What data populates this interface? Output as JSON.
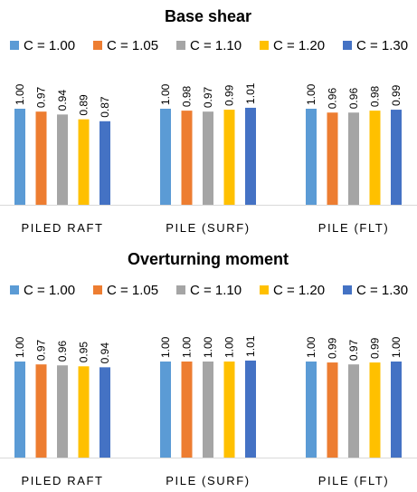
{
  "chart_data": [
    {
      "type": "bar",
      "title": "Base shear",
      "categories": [
        "PILED RAFT",
        "PILE (SURF)",
        "PILE (FLT)"
      ],
      "series": [
        {
          "name": "C = 1.00",
          "color": "#5B9BD5",
          "values": [
            1.0,
            1.0,
            1.0
          ]
        },
        {
          "name": "C = 1.05",
          "color": "#ED7D31",
          "values": [
            0.97,
            0.98,
            0.96
          ]
        },
        {
          "name": "C = 1.10",
          "color": "#A5A5A5",
          "values": [
            0.94,
            0.97,
            0.96
          ]
        },
        {
          "name": "C = 1.20",
          "color": "#FFC000",
          "values": [
            0.89,
            0.99,
            0.98
          ]
        },
        {
          "name": "C = 1.30",
          "color": "#4472C4",
          "values": [
            0.87,
            1.01,
            0.99
          ]
        }
      ],
      "value_labels": [
        [
          "1.00",
          "0.97",
          "0.94",
          "0.89",
          "0.87"
        ],
        [
          "1.00",
          "0.98",
          "0.97",
          "0.99",
          "1.01"
        ],
        [
          "1.00",
          "0.96",
          "0.96",
          "0.98",
          "0.99"
        ]
      ],
      "legend_position": "top",
      "grid": false
    },
    {
      "type": "bar",
      "title": "Overturning moment",
      "categories": [
        "PILED RAFT",
        "PILE (SURF)",
        "PILE (FLT)"
      ],
      "series": [
        {
          "name": "C = 1.00",
          "color": "#5B9BD5",
          "values": [
            1.0,
            1.0,
            1.0
          ]
        },
        {
          "name": "C = 1.05",
          "color": "#ED7D31",
          "values": [
            0.97,
            1.0,
            0.99
          ]
        },
        {
          "name": "C = 1.10",
          "color": "#A5A5A5",
          "values": [
            0.96,
            1.0,
            0.97
          ]
        },
        {
          "name": "C = 1.20",
          "color": "#FFC000",
          "values": [
            0.95,
            1.0,
            0.99
          ]
        },
        {
          "name": "C = 1.30",
          "color": "#4472C4",
          "values": [
            0.94,
            1.01,
            1.0
          ]
        }
      ],
      "value_labels": [
        [
          "1.00",
          "0.97",
          "0.96",
          "0.95",
          "0.94"
        ],
        [
          "1.00",
          "1.00",
          "1.00",
          "1.00",
          "1.01"
        ],
        [
          "1.00",
          "0.99",
          "0.97",
          "0.99",
          "1.00"
        ]
      ],
      "legend_position": "top",
      "grid": false
    }
  ]
}
